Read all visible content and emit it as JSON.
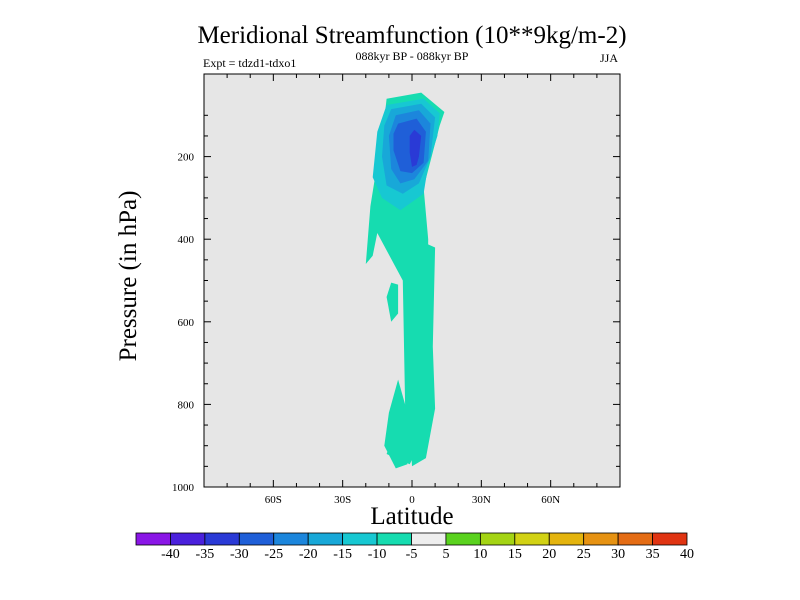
{
  "chart_data": {
    "type": "contour",
    "title": "Meridional Streamfunction (10**9kg/m-2)",
    "subtitle_left": "Expt = tdzd1-tdxo1",
    "subtitle_center": "088kyr BP - 088kyr BP",
    "subtitle_right": "JJA",
    "xlabel": "Latitude",
    "ylabel": "Pressure (in hPa)",
    "xlim": [
      -90,
      90
    ],
    "ylim": [
      0,
      1000
    ],
    "y_inverted": true,
    "x_ticks": [
      {
        "value": -60,
        "label": "60S"
      },
      {
        "value": -30,
        "label": "30S"
      },
      {
        "value": 0,
        "label": "0"
      },
      {
        "value": 30,
        "label": "30N"
      },
      {
        "value": 60,
        "label": "60N"
      }
    ],
    "y_ticks": [
      {
        "value": 200,
        "label": "200"
      },
      {
        "value": 400,
        "label": "400"
      },
      {
        "value": 600,
        "label": "600"
      },
      {
        "value": 800,
        "label": "800"
      },
      {
        "value": 1000,
        "label": "1000"
      }
    ],
    "background_color": "#e6e6e6",
    "colorbar": {
      "levels": [
        -40,
        -35,
        -30,
        -25,
        -20,
        -15,
        -10,
        -5,
        5,
        10,
        15,
        20,
        25,
        30,
        35,
        40
      ],
      "labels": [
        "-40",
        "-35",
        "-30",
        "-25",
        "-20",
        "-15",
        "-10",
        "-5",
        "5",
        "10",
        "15",
        "20",
        "25",
        "30",
        "35",
        "40"
      ],
      "colors": [
        "#8a16e6",
        "#4a20dc",
        "#2a3ad6",
        "#1f5fd8",
        "#1c86dc",
        "#18a8d8",
        "#17c8d2",
        "#16dcb0",
        "#eeeeee",
        "#5ad21e",
        "#a4d414",
        "#d2d214",
        "#e4b40e",
        "#e69212",
        "#e46c14",
        "#e03412"
      ]
    },
    "contour_regions": [
      {
        "level_range": [
          -10,
          -5
        ],
        "color": "#16dcb0",
        "description": "main cell outline",
        "points": [
          [
            -11,
            60
          ],
          [
            4,
            45
          ],
          [
            14,
            92
          ],
          [
            12,
            125
          ],
          [
            5,
            275
          ],
          [
            7,
            400
          ],
          [
            6,
            870
          ],
          [
            -1,
            945
          ],
          [
            -11,
            920
          ],
          [
            -3,
            800
          ],
          [
            -4,
            500
          ],
          [
            -15,
            385
          ],
          [
            -17,
            440
          ],
          [
            -20,
            460
          ],
          [
            -18,
            320
          ],
          [
            -12,
            110
          ]
        ]
      },
      {
        "level_range": [
          -10,
          -5
        ],
        "color": "#16dcb0",
        "description": "lower east column",
        "points": [
          [
            2,
            400
          ],
          [
            10,
            420
          ],
          [
            9,
            660
          ],
          [
            10,
            810
          ],
          [
            6,
            930
          ],
          [
            0,
            950
          ],
          [
            -2,
            700
          ]
        ]
      },
      {
        "level_range": [
          -10,
          -5
        ],
        "color": "#16dcb0",
        "description": "isolated blob",
        "points": [
          [
            -9,
            505
          ],
          [
            -6,
            510
          ],
          [
            -6,
            580
          ],
          [
            -9,
            600
          ],
          [
            -11,
            540
          ]
        ]
      },
      {
        "level_range": [
          -10,
          -5
        ],
        "color": "#16dcb0",
        "description": "lower west branch",
        "points": [
          [
            -6,
            740
          ],
          [
            -3,
            800
          ],
          [
            -2,
            945
          ],
          [
            -7,
            955
          ],
          [
            -12,
            900
          ],
          [
            -10,
            820
          ]
        ]
      },
      {
        "level_range": [
          -15,
          -10
        ],
        "color": "#17c8d2",
        "points": [
          [
            -11,
            75
          ],
          [
            5,
            60
          ],
          [
            12,
            95
          ],
          [
            11,
            150
          ],
          [
            7,
            220
          ],
          [
            5,
            290
          ],
          [
            -5,
            330
          ],
          [
            -13,
            300
          ],
          [
            -17,
            250
          ],
          [
            -15,
            140
          ]
        ]
      },
      {
        "level_range": [
          -20,
          -15
        ],
        "color": "#18a8d8",
        "points": [
          [
            -9,
            85
          ],
          [
            4,
            72
          ],
          [
            10,
            105
          ],
          [
            8,
            200
          ],
          [
            3,
            265
          ],
          [
            -4,
            290
          ],
          [
            -11,
            270
          ],
          [
            -13,
            200
          ],
          [
            -12,
            125
          ]
        ]
      },
      {
        "level_range": [
          -25,
          -20
        ],
        "color": "#1c86dc",
        "points": [
          [
            -7,
            100
          ],
          [
            3,
            88
          ],
          [
            8,
            120
          ],
          [
            7,
            210
          ],
          [
            1,
            255
          ],
          [
            -5,
            265
          ],
          [
            -9,
            230
          ],
          [
            -10,
            150
          ]
        ]
      },
      {
        "level_range": [
          -30,
          -25
        ],
        "color": "#1f5fd8",
        "points": [
          [
            -6,
            120
          ],
          [
            2,
            108
          ],
          [
            6,
            140
          ],
          [
            5,
            215
          ],
          [
            0,
            240
          ],
          [
            -5,
            235
          ],
          [
            -8,
            185
          ],
          [
            -8,
            145
          ]
        ]
      },
      {
        "level_range": [
          -35,
          -30
        ],
        "color": "#2a3ad6",
        "points": [
          [
            1,
            135
          ],
          [
            4,
            150
          ],
          [
            3,
            200
          ],
          [
            2,
            220
          ],
          [
            0,
            225
          ],
          [
            -1,
            190
          ],
          [
            -1,
            150
          ]
        ]
      }
    ]
  }
}
